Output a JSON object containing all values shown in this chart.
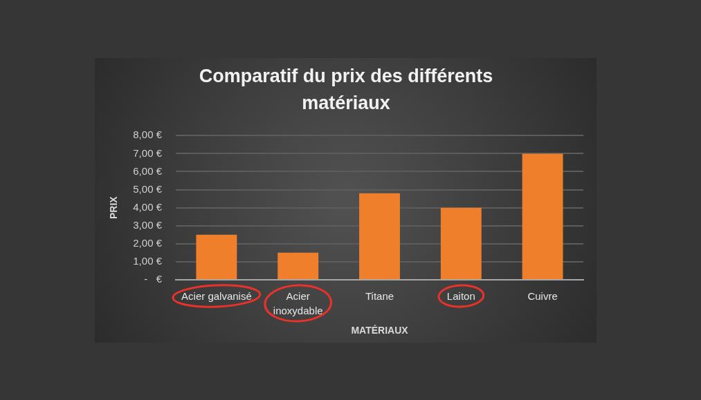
{
  "chart_data": {
    "type": "bar",
    "title": "Comparatif du prix des différents matériaux",
    "xlabel": "MATÉRIAUX",
    "ylabel": "PRIX",
    "categories": [
      "Acier galvanisé",
      "Acier inoxydable",
      "Titane",
      "Laiton",
      "Cuivre"
    ],
    "values": [
      2.5,
      1.5,
      4.8,
      4,
      7
    ],
    "color": "#f07f2c",
    "ylim": [
      0,
      8
    ],
    "yticks": [
      {
        "value": 0,
        "label": "-   €"
      },
      {
        "value": 1,
        "label": "1,00 €"
      },
      {
        "value": 2,
        "label": "2,00 €"
      },
      {
        "value": 3,
        "label": "3,00 €"
      },
      {
        "value": 4,
        "label": "4,00 €"
      },
      {
        "value": 5,
        "label": "5,00 €"
      },
      {
        "value": 6,
        "label": "6,00 €"
      },
      {
        "value": 7,
        "label": "7,00 €"
      },
      {
        "value": 8,
        "label": "8,00 €"
      }
    ],
    "grid": "y"
  }
}
